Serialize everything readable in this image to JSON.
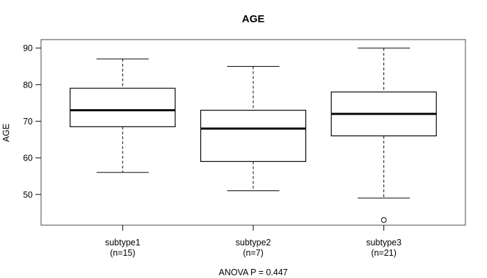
{
  "chart_data": {
    "type": "boxplot",
    "title": "AGE",
    "ylabel": "AGE",
    "xlabel": "",
    "annotation": "ANOVA P = 0.447",
    "yticks": [
      50,
      60,
      70,
      80,
      90
    ],
    "ylim": [
      41.6,
      92.3
    ],
    "xlim": [
      0.375,
      3.625
    ],
    "grid": false,
    "legend": "none",
    "line_color": "#000000",
    "fill_color": "#ffffff",
    "groups": [
      {
        "label": "subtype1",
        "sublabel": "(n=15)",
        "position": 1,
        "lower_whisker": 56,
        "q1": 68.5,
        "median": 73,
        "q3": 79,
        "upper_whisker": 87,
        "outliers": []
      },
      {
        "label": "subtype2",
        "sublabel": "(n=7)",
        "position": 2,
        "lower_whisker": 51,
        "q1": 59,
        "median": 68,
        "q3": 73,
        "upper_whisker": 85,
        "outliers": []
      },
      {
        "label": "subtype3",
        "sublabel": "(n=21)",
        "position": 3,
        "lower_whisker": 49,
        "q1": 66,
        "median": 72,
        "q3": 78,
        "upper_whisker": 90,
        "outliers": [
          43
        ]
      }
    ]
  }
}
